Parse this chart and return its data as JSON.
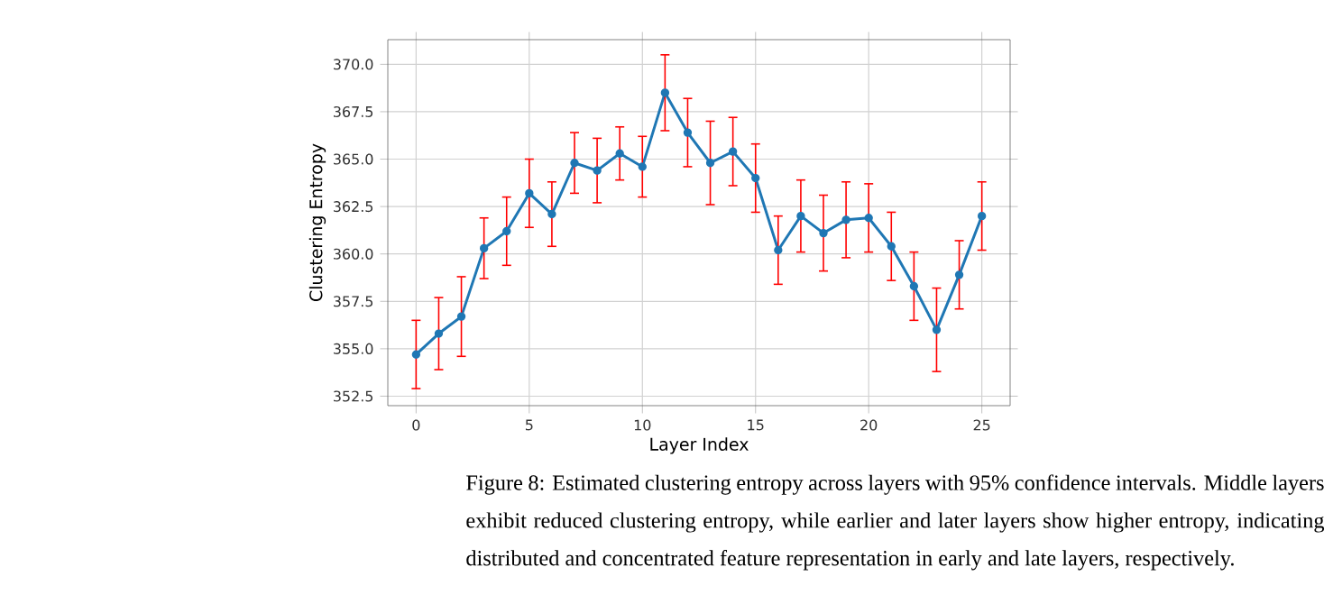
{
  "chart_data": {
    "type": "line",
    "xlabel": "Layer Index",
    "ylabel": "Clustering Entropy",
    "x": [
      0,
      1,
      2,
      3,
      4,
      5,
      6,
      7,
      8,
      9,
      10,
      11,
      12,
      13,
      14,
      15,
      16,
      17,
      18,
      19,
      20,
      21,
      22,
      23,
      24,
      25
    ],
    "series": [
      {
        "color": "#1f77b4",
        "values": [
          354.7,
          355.8,
          356.7,
          360.3,
          361.2,
          363.2,
          362.1,
          364.8,
          364.4,
          365.3,
          364.6,
          368.5,
          366.4,
          364.8,
          365.4,
          364.0,
          360.2,
          362.0,
          361.1,
          361.8,
          361.9,
          360.4,
          358.3,
          356.0,
          358.9,
          362.0
        ],
        "errors": [
          1.8,
          1.9,
          2.1,
          1.6,
          1.8,
          1.8,
          1.7,
          1.6,
          1.7,
          1.4,
          1.6,
          2.0,
          1.8,
          2.2,
          1.8,
          1.8,
          1.8,
          1.9,
          2.0,
          2.0,
          1.8,
          1.8,
          1.8,
          2.2,
          1.8,
          1.8
        ]
      }
    ],
    "xlim": [
      -1.25,
      26.25
    ],
    "xticks": [
      0,
      5,
      10,
      15,
      20,
      25
    ],
    "ylim": [
      352.0,
      371.3
    ],
    "yticks": [
      {
        "value": 352.5,
        "label": "352.5"
      },
      {
        "value": 355,
        "label": "355.0"
      },
      {
        "value": 357.5,
        "label": "357.5"
      },
      {
        "value": 360,
        "label": "360.0"
      },
      {
        "value": 362.5,
        "label": "362.5"
      },
      {
        "value": 365,
        "label": "365.0"
      },
      {
        "value": 367.5,
        "label": "367.5"
      },
      {
        "value": 370,
        "label": "370.0"
      }
    ],
    "grid": true,
    "marker": "circle",
    "line_style": "solid",
    "annotations": [
      "Figure 8: Estimated clustering entropy across layers with 95% confidence intervals. Middle layers exhibit reduced clustering entropy, while earlier and later layers show higher entropy, indicating distributed and concentrated feature representation in early and late layers, respectively."
    ]
  }
}
